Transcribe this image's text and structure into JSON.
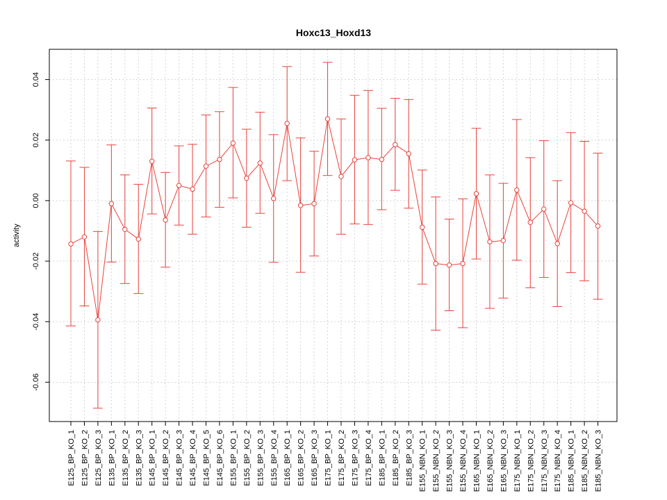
{
  "chart_data": {
    "type": "line",
    "title": "Hoxc13_Hoxd13",
    "xlabel": "",
    "ylabel": "activity",
    "ylim": [
      -0.073,
      0.05
    ],
    "yticks": [
      -0.06,
      -0.04,
      -0.02,
      0.0,
      0.02,
      0.04
    ],
    "ytick_labels": [
      "-0.06",
      "-0.04",
      "-0.02",
      "0.00",
      "0.02",
      "0.04"
    ],
    "grid": true,
    "legend": "none",
    "colors": {
      "series": "#e8403a",
      "grid": "#d3d3d3",
      "axis": "#000000"
    },
    "categories": [
      "E125_BP_KO_1",
      "E125_BP_KO_2",
      "E125_BP_KO_3",
      "E135_BP_KO_1",
      "E135_BP_KO_2",
      "E135_BP_KO_3",
      "E145_BP_KO_1",
      "E145_BP_KO_2",
      "E145_BP_KO_3",
      "E145_BP_KO_4",
      "E145_BP_KO_5",
      "E145_BP_KO_6",
      "E155_BP_KO_1",
      "E155_BP_KO_2",
      "E155_BP_KO_3",
      "E155_BP_KO_4",
      "E165_BP_KO_1",
      "E165_BP_KO_2",
      "E165_BP_KO_3",
      "E175_BP_KO_1",
      "E175_BP_KO_2",
      "E175_BP_KO_3",
      "E175_BP_KO_4",
      "E185_BP_KO_1",
      "E185_BP_KO_2",
      "E185_BP_KO_3",
      "E155_NBN_KO_1",
      "E155_NBN_KO_2",
      "E155_NBN_KO_3",
      "E155_NBN_KO_4",
      "E165_NBN_KO_1",
      "E165_NBN_KO_2",
      "E165_NBN_KO_3",
      "E175_NBN_KO_1",
      "E175_NBN_KO_2",
      "E175_NBN_KO_3",
      "E175_NBN_KO_4",
      "E185_NBN_KO_1",
      "E185_NBN_KO_2",
      "E185_NBN_KO_3"
    ],
    "values": [
      -0.0143,
      -0.012,
      -0.0394,
      -0.001,
      -0.0095,
      -0.0127,
      0.013,
      -0.0064,
      0.005,
      0.0038,
      0.0114,
      0.0136,
      0.019,
      0.0074,
      0.0124,
      0.0007,
      0.0255,
      -0.0016,
      -0.001,
      0.027,
      0.008,
      0.0135,
      0.0142,
      0.0136,
      0.0185,
      0.0155,
      -0.0088,
      -0.0208,
      -0.0213,
      -0.0208,
      0.0023,
      -0.0136,
      -0.0132,
      0.0035,
      -0.0072,
      -0.0028,
      -0.0142,
      -0.0007,
      -0.0035,
      -0.0084
    ],
    "upper": [
      0.0131,
      0.011,
      -0.0102,
      0.0184,
      0.0085,
      0.0054,
      0.0306,
      0.0093,
      0.0181,
      0.0186,
      0.0283,
      0.0294,
      0.0374,
      0.0236,
      0.0292,
      0.0218,
      0.0443,
      0.0207,
      0.0163,
      0.0457,
      0.027,
      0.0348,
      0.0364,
      0.0305,
      0.0338,
      0.0334,
      0.0101,
      0.0012,
      -0.0061,
      0.0006,
      0.0239,
      0.0085,
      0.0057,
      0.0268,
      0.0142,
      0.0198,
      0.0066,
      0.0225,
      0.0196,
      0.0157
    ],
    "lower": [
      -0.0414,
      -0.0348,
      -0.0686,
      -0.0203,
      -0.0274,
      -0.0307,
      -0.0044,
      -0.022,
      -0.0081,
      -0.0111,
      -0.0054,
      -0.0022,
      0.0009,
      -0.0088,
      -0.0042,
      -0.0204,
      0.0066,
      -0.0237,
      -0.0183,
      0.0083,
      -0.0111,
      -0.0077,
      -0.0079,
      -0.003,
      0.0034,
      -0.0025,
      -0.0276,
      -0.0428,
      -0.0364,
      -0.042,
      -0.0193,
      -0.0356,
      -0.0322,
      -0.0197,
      -0.0288,
      -0.0254,
      -0.035,
      -0.0238,
      -0.0265,
      -0.0326
    ]
  }
}
